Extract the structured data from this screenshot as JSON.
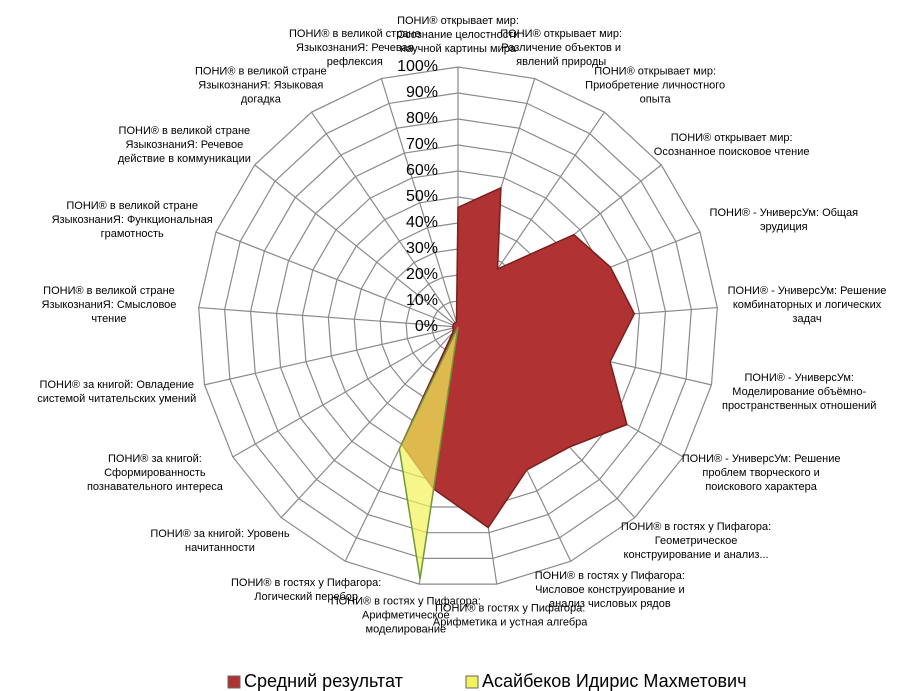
{
  "chart_data": {
    "type": "radar",
    "categories": [
      [
        "ПОНИ® открывает мир:",
        "Осознание целостности",
        "научной картины мира"
      ],
      [
        "ПОНИ® открывает мир:",
        "Различение объектов и",
        "явлений природы"
      ],
      [
        "ПОНИ® открывает мир:",
        "Приобретение личностного",
        "опыта"
      ],
      [
        "ПОНИ® открывает мир:",
        "Осознанное поисковое чтение"
      ],
      [
        "ПОНИ® - УниверсУм: Общая",
        "эрудиция"
      ],
      [
        "ПОНИ® - УниверсУм: Решение",
        "комбинаторных и логических",
        "задач"
      ],
      [
        "ПОНИ® - УниверсУм:",
        "Моделирование объёмно-",
        "пространственных отношений"
      ],
      [
        "ПОНИ® - УниверсУм: Решение",
        "проблем творческого и",
        "поискового характера"
      ],
      [
        "ПОНИ® в гостях у Пифагора:",
        "Геометрическое",
        "конструирование и анализ..."
      ],
      [
        "ПОНИ® в гостях у Пифагора:",
        "Числовое конструирование и",
        "анализ числовых рядов"
      ],
      [
        "ПОНИ® в гостях у Пифагора:",
        "Арифметика и устная алгебра"
      ],
      [
        "ПОНИ® в гостях у Пифагора:",
        "Арифметическое",
        "моделирование"
      ],
      [
        "ПОНИ® в гостях у Пифагора:",
        "Логический перебор"
      ],
      [
        "ПОНИ® за книгой: Уровень",
        "начитанности"
      ],
      [
        "ПОНИ® за книгой:",
        "Сформированность",
        "познавательного интереса"
      ],
      [
        "ПОНИ® за книгой: Овладение",
        "системой читательских умений"
      ],
      [
        "ПОНИ® в великой стране",
        "ЯзыкознаниЯ: Смысловое",
        "чтение"
      ],
      [
        "ПОНИ® в великой стране",
        "ЯзыкознаниЯ: Функциональная",
        "грамотность"
      ],
      [
        "ПОНИ® в великой стране",
        "ЯзыкознаниЯ: Речевое",
        "действие в коммуникации"
      ],
      [
        "ПОНИ® в великой стране",
        "ЯзыкознаниЯ: Языковая",
        "догадка"
      ],
      [
        "ПОНИ® в великой стране",
        "ЯзыкознаниЯ: Речевая",
        "рефлексия"
      ]
    ],
    "series": [
      {
        "name": "Средний результат",
        "color": "#b03232",
        "values": [
          46,
          56,
          27,
          57,
          63,
          68,
          60,
          75,
          63,
          61,
          78,
          63,
          50,
          3,
          2,
          2,
          2,
          2,
          2,
          2,
          2
        ]
      },
      {
        "name": "Асайбеков Идирис Махметович",
        "color": "#f2f25a",
        "values": [
          0,
          0,
          0,
          0,
          0,
          0,
          0,
          0,
          0,
          0,
          0,
          98,
          52,
          0,
          0,
          0,
          0,
          0,
          0,
          0,
          0
        ]
      }
    ],
    "ylim": [
      0,
      100
    ],
    "yticks": [
      {
        "value": 0,
        "label": "0%"
      },
      {
        "value": 10,
        "label": "10%"
      },
      {
        "value": 20,
        "label": "20%"
      },
      {
        "value": 30,
        "label": "30%"
      },
      {
        "value": 40,
        "label": "40%"
      },
      {
        "value": 50,
        "label": "50%"
      },
      {
        "value": 60,
        "label": "60%"
      },
      {
        "value": 70,
        "label": "70%"
      },
      {
        "value": 80,
        "label": "80%"
      },
      {
        "value": 90,
        "label": "90%"
      },
      {
        "value": 100,
        "label": "100%"
      }
    ],
    "grid": true,
    "legend": "bottom"
  }
}
